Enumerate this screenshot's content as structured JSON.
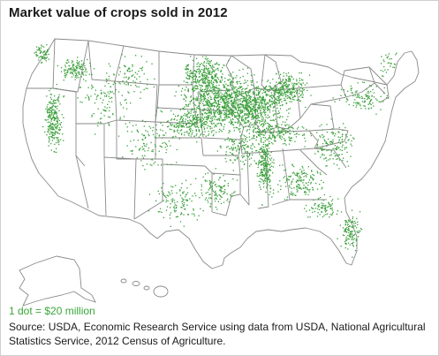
{
  "title": "Market value of crops sold in 2012",
  "legend": "1 dot = $20 million",
  "source": "Source: USDA, Economic Research Service using data from USDA, National Agricultural Statistics Service, 2012 Census of Agriculture.",
  "colors": {
    "dot": "#3a9f3a",
    "state_border": "#8a8a8a",
    "land": "#ffffff",
    "legend_text": "#3aa63a"
  }
}
